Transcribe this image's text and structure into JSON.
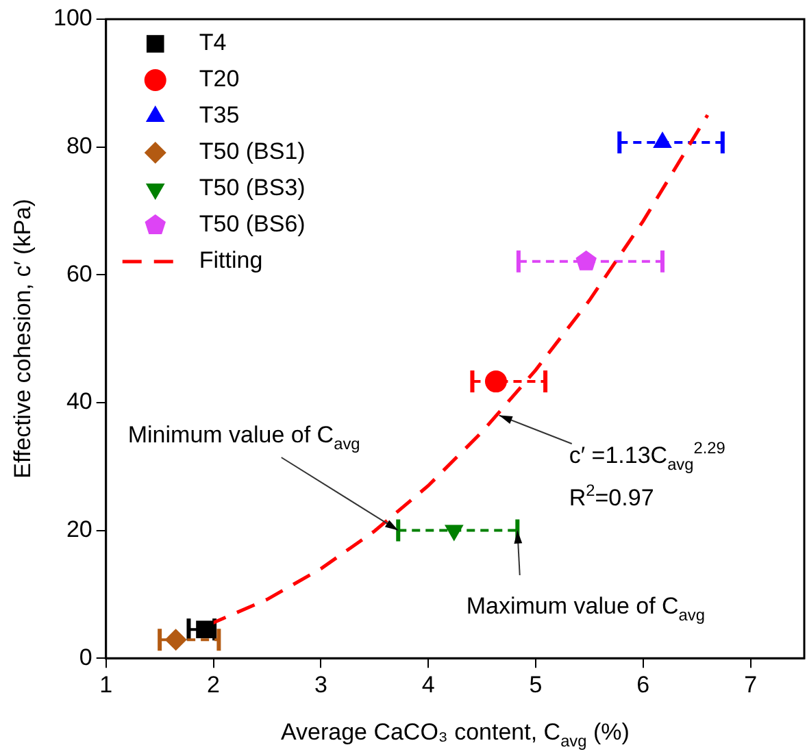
{
  "chart_data": {
    "type": "scatter",
    "xlabel": "Average CaCO₃ content, C$_{avg}$ (%)",
    "ylabel": "Effective cohesion, c′ (kPa)",
    "xlim": [
      1,
      7.5
    ],
    "xticks": [
      1,
      2,
      3,
      4,
      5,
      6,
      7
    ],
    "ylim": [
      0,
      100
    ],
    "yticks": [
      0,
      20,
      40,
      60,
      80,
      100
    ],
    "grid": false,
    "legend": "top left",
    "series": [
      {
        "name": "T4",
        "color": "#000000",
        "marker": "square",
        "x": [
          1.92
        ],
        "values": [
          4.5
        ],
        "xerrors": [
          [
            1.77,
            2.01
          ]
        ]
      },
      {
        "name": "T20",
        "color": "#ff0000",
        "marker": "circle",
        "x": [
          4.63
        ],
        "values": [
          43.3
        ],
        "xerrors": [
          [
            4.41,
            5.09
          ]
        ]
      },
      {
        "name": "T35",
        "color": "#0000ff",
        "marker": "triangle",
        "x": [
          6.18
        ],
        "values": [
          80.7
        ],
        "xerrors": [
          [
            5.78,
            6.74
          ]
        ]
      },
      {
        "name": "T50 (BS1)",
        "color": "#b35a12",
        "marker": "diamond",
        "x": [
          1.65
        ],
        "values": [
          2.9
        ],
        "xerrors": [
          [
            1.5,
            2.05
          ]
        ]
      },
      {
        "name": "T50 (BS3)",
        "color": "#008000",
        "marker": "triangle-down",
        "x": [
          4.24
        ],
        "values": [
          20
        ],
        "xerrors": [
          [
            3.72,
            4.83
          ]
        ]
      },
      {
        "name": "T50 (BS6)",
        "color": "#dd44f5",
        "x": [
          5.47
        ],
        "values": [
          62.1
        ],
        "xerrors": [
          [
            4.84,
            6.18
          ]
        ]
      },
      {
        "name": "Fitting",
        "type": "line",
        "color": "#ff0000",
        "marker": "none",
        "line_style": "dashed",
        "x": [
          1.95,
          2.5,
          3,
          3.5,
          4,
          4.5,
          5,
          5.5,
          6,
          6.6
        ],
        "values": [
          5.2,
          9.2,
          14,
          19.9,
          27,
          35.4,
          45.1,
          56,
          68.4,
          85
        ]
      }
    ],
    "annotations": [
      {
        "text": "Minimum value of C$_{avg}$",
        "x": 3.72,
        "y": 20
      },
      {
        "text": "Maximum value of C$_{avg}$",
        "x": 4.83,
        "y": 20
      },
      {
        "text": "c′ =1.13C$_{avg}$$^{2.29}$",
        "x": 4.66,
        "y": 38
      },
      "R$^{2}$=0.97"
    ]
  }
}
